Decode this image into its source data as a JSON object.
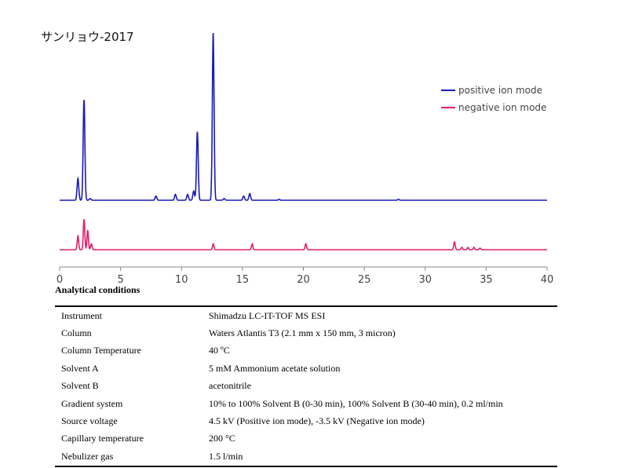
{
  "title": "サンリョウ-2017",
  "legend": {
    "positive_label": "positive ion mode",
    "negative_label": "negative ion mode"
  },
  "colors": {
    "positive": "#1a1ab8",
    "negative": "#e0206a",
    "axis": "#888888"
  },
  "chart_data": {
    "type": "line",
    "title": "サンリョウ-2017",
    "xlabel": "",
    "ylabel": "",
    "xlim": [
      0,
      40
    ],
    "xticks": [
      0,
      5,
      10,
      15,
      20,
      25,
      30,
      35,
      40
    ],
    "legend_position": "top-right",
    "grid": false,
    "y_units": "relative intensity (0-1, read from image)",
    "series": [
      {
        "name": "positive ion mode",
        "color": "#1a1ab8",
        "peaks": [
          {
            "x": 1.5,
            "y": 0.13
          },
          {
            "x": 2.0,
            "y": 0.6
          },
          {
            "x": 2.5,
            "y": 0.01
          },
          {
            "x": 7.9,
            "y": 0.025
          },
          {
            "x": 9.5,
            "y": 0.035
          },
          {
            "x": 10.5,
            "y": 0.035
          },
          {
            "x": 11.0,
            "y": 0.055
          },
          {
            "x": 11.3,
            "y": 0.41
          },
          {
            "x": 12.6,
            "y": 1.0
          },
          {
            "x": 13.5,
            "y": 0.01
          },
          {
            "x": 15.1,
            "y": 0.025
          },
          {
            "x": 15.6,
            "y": 0.04
          },
          {
            "x": 18.0,
            "y": 0.005
          },
          {
            "x": 27.8,
            "y": 0.005
          }
        ]
      },
      {
        "name": "negative ion mode",
        "color": "#e0206a",
        "peaks": [
          {
            "x": 1.5,
            "y": 0.07
          },
          {
            "x": 2.0,
            "y": 0.155
          },
          {
            "x": 2.3,
            "y": 0.1
          },
          {
            "x": 2.6,
            "y": 0.03
          },
          {
            "x": 12.6,
            "y": 0.03
          },
          {
            "x": 15.8,
            "y": 0.03
          },
          {
            "x": 20.2,
            "y": 0.03
          },
          {
            "x": 32.4,
            "y": 0.04
          },
          {
            "x": 33.0,
            "y": 0.012
          },
          {
            "x": 33.5,
            "y": 0.012
          },
          {
            "x": 34.0,
            "y": 0.012
          },
          {
            "x": 34.5,
            "y": 0.008
          }
        ]
      }
    ]
  },
  "conditions": {
    "heading": "Analytical conditions",
    "rows": [
      {
        "key": "Instrument",
        "value": "Shimadzu LC-IT-TOF MS ESI"
      },
      {
        "key": "Column",
        "value": "Waters Atlantis T3 (2.1 mm x 150 mm, 3 micron)"
      },
      {
        "key": "Column Temperature",
        "value": "40 ºC"
      },
      {
        "key": "Solvent A",
        "value": "5 mM Ammonium acetate solution"
      },
      {
        "key": "Solvent B",
        "value": "acetonitrile"
      },
      {
        "key": "Gradient system",
        "value": "10% to 100% Solvent B (0-30 min), 100% Solvent B (30-40 min), 0.2 ml/min"
      },
      {
        "key": "Source voltage",
        "value": "4.5 kV (Positive ion mode), -3.5 kV (Negative ion mode)"
      },
      {
        "key": "Capillary temperature",
        "value": "200 °C"
      },
      {
        "key": "Nebulizer gas",
        "value": "1.5 l/min"
      }
    ]
  }
}
